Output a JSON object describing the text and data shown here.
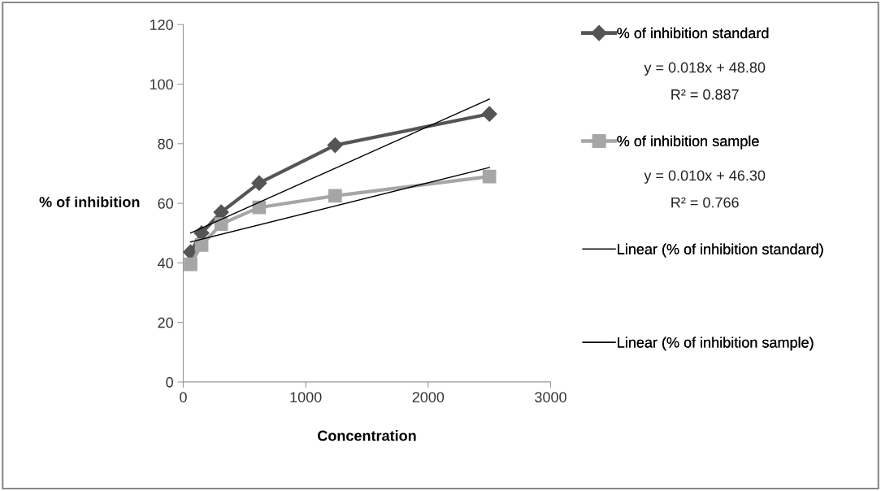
{
  "chart_data": {
    "type": "line",
    "xlabel": "Concentration",
    "ylabel": "% of inhibition",
    "series": [
      {
        "name": "% of inhibition standard",
        "color": "#555555",
        "marker": "diamond",
        "x": [
          60,
          150,
          310,
          620,
          1240,
          2500
        ],
        "values": [
          43.6,
          50,
          57,
          66.8,
          79.5,
          90
        ]
      },
      {
        "name": "% of inhibition sample",
        "color": "#a6a6a6",
        "marker": "square",
        "x": [
          60,
          150,
          310,
          620,
          1240,
          2500
        ],
        "values": [
          39.5,
          46,
          53,
          58.6,
          62.5,
          69
        ]
      },
      {
        "name": "Linear (% of inhibition standard)",
        "color": "#000000",
        "marker": "none",
        "x": [
          60,
          2500
        ],
        "values": [
          50,
          95
        ]
      },
      {
        "name": "Linear (% of inhibition sample)",
        "color": "#000000",
        "marker": "none",
        "x": [
          60,
          2500
        ],
        "values": [
          47,
          72
        ]
      }
    ],
    "annotations": [
      "y = 0.018x + 48.80",
      "R² = 0.887",
      "y = 0.010x + 46.30",
      "R² = 0.766"
    ],
    "xlim": [
      0,
      3000
    ],
    "xticks": [
      0,
      1000,
      2000,
      3000
    ],
    "ylim": [
      0,
      120
    ],
    "yticks": [
      0,
      20,
      40,
      60,
      80,
      100,
      120
    ],
    "grid": false,
    "legend": "right",
    "line_style": "solid"
  }
}
